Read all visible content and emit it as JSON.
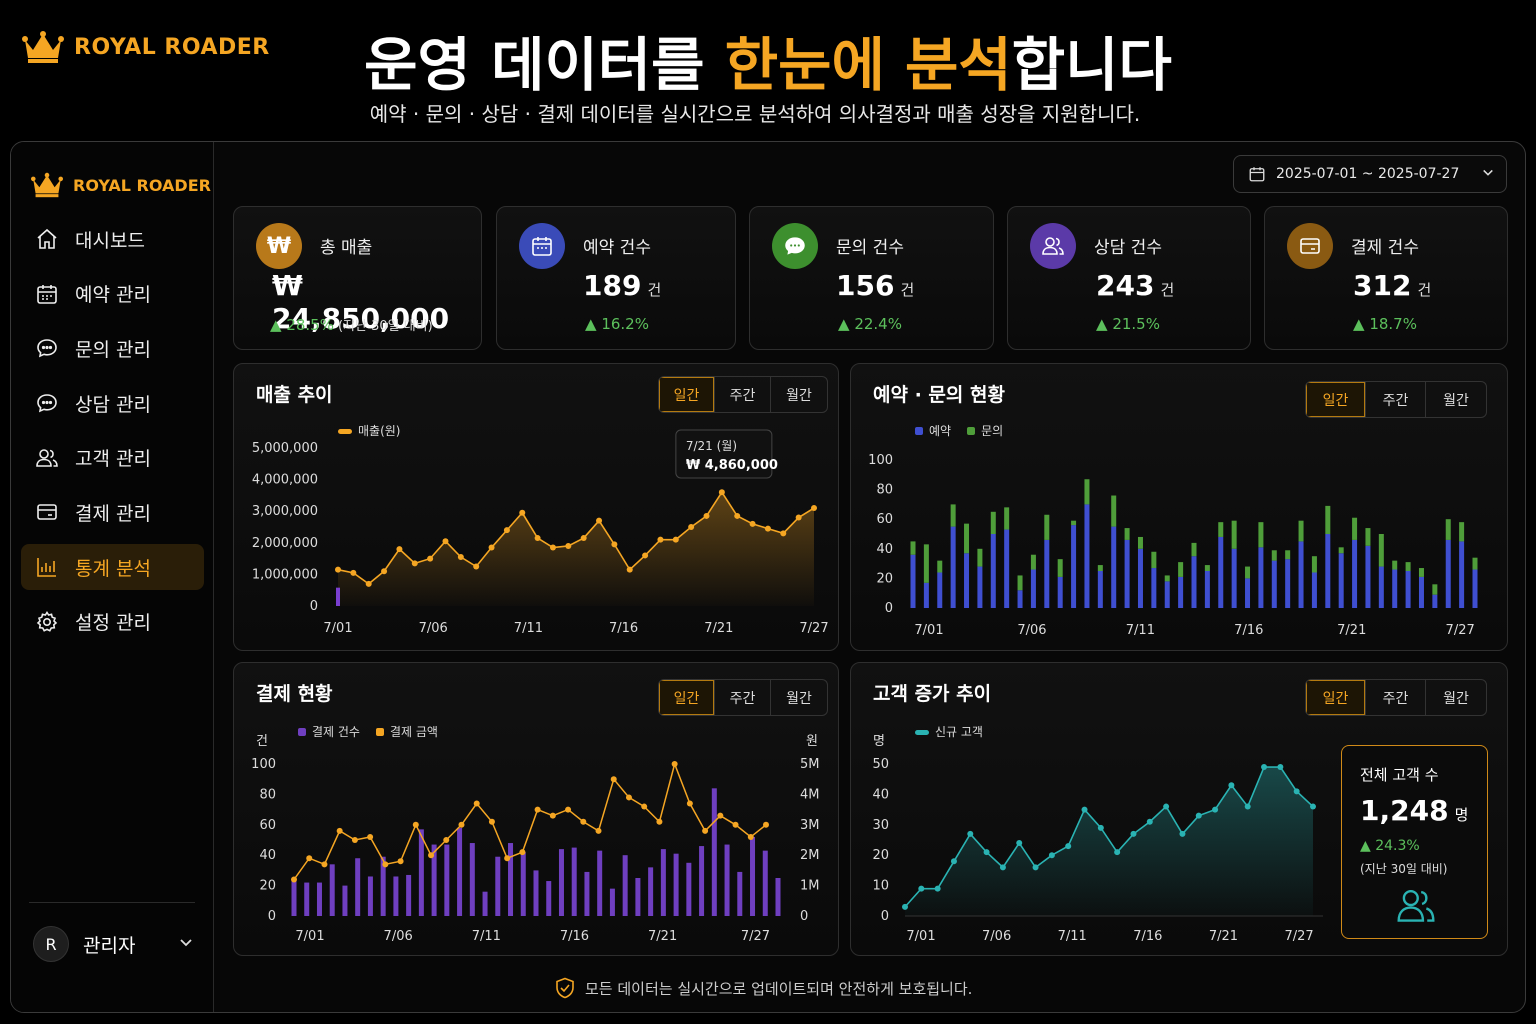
{
  "brand": {
    "name": "ROYAL ROADER"
  },
  "headline": {
    "part1": "운영 데이터를 ",
    "highlight": "한눈에 분석",
    "part2": "합니다"
  },
  "subline": "예약 · 문의 · 상담 · 결제 데이터를 실시간으로 분석하여 의사결정과 매출 성장을 지원합니다.",
  "sidebar": {
    "items": [
      {
        "label": "대시보드",
        "icon": "home-icon"
      },
      {
        "label": "예약 관리",
        "icon": "calendar-icon"
      },
      {
        "label": "문의 관리",
        "icon": "chat-icon"
      },
      {
        "label": "상담 관리",
        "icon": "chat-icon"
      },
      {
        "label": "고객 관리",
        "icon": "users-icon"
      },
      {
        "label": "결제 관리",
        "icon": "card-icon"
      },
      {
        "label": "통계 분석",
        "icon": "bar-chart-icon",
        "active": true
      },
      {
        "label": "설정 관리",
        "icon": "gear-icon"
      }
    ],
    "user": {
      "initial": "R",
      "name": "관리자"
    }
  },
  "date_range": "2025-07-01 ~ 2025-07-27",
  "kpis": [
    {
      "label": "총 매출",
      "value": "₩ 24,850,000",
      "unit": "",
      "change": "28.5%",
      "note": "(지난 30일 대비)",
      "color": "#b8791a",
      "icon": "won-icon"
    },
    {
      "label": "예약 건수",
      "value": "189",
      "unit": "건",
      "change": "16.2%",
      "color": "#3a4bb8",
      "icon": "calendar-icon"
    },
    {
      "label": "문의 건수",
      "value": "156",
      "unit": "건",
      "change": "22.4%",
      "color": "#3d8f2e",
      "icon": "chat-icon"
    },
    {
      "label": "상담 건수",
      "value": "243",
      "unit": "건",
      "change": "21.5%",
      "color": "#5b3aa8",
      "icon": "users-icon"
    },
    {
      "label": "결제 건수",
      "value": "312",
      "unit": "건",
      "change": "18.7%",
      "color": "#8a5a12",
      "icon": "card-icon"
    }
  ],
  "period_tabs": [
    "일간",
    "주간",
    "월간"
  ],
  "panels": {
    "revenue": {
      "title": "매출 추이",
      "legend": "매출(원)",
      "tooltip_date": "7/21 (월)",
      "tooltip_value": "₩ 4,860,000"
    },
    "booking": {
      "title": "예약 · 문의 현황",
      "legend1": "예약",
      "legend2": "문의"
    },
    "payment": {
      "title": "결제 현황",
      "legend1": "결제 건수",
      "legend2": "결제 금액",
      "yleft": "건",
      "yright": "원"
    },
    "customer": {
      "title": "고객 증가 추이",
      "legend": "신규 고객",
      "yunit": "명",
      "total_label": "전체 고객 수",
      "total_value": "1,248",
      "total_unit": "명",
      "total_change": "24.3%",
      "total_note": "(지난 30일 대비)"
    }
  },
  "footer": "모든 데이터는 실시간으로 업데이트되며 안전하게 보호됩니다.",
  "colors": {
    "accent": "#f5a623",
    "blue": "#3f4fd1",
    "green": "#4f9e3a",
    "purple": "#6f3fc0",
    "teal": "#2ab3b3",
    "up": "#5cc05c"
  },
  "chart_data": [
    {
      "type": "line",
      "title": "매출 추이",
      "series": [
        {
          "name": "매출(원)",
          "values": [
            1150000,
            1050000,
            700000,
            1100000,
            1800000,
            1350000,
            1500000,
            2050000,
            1550000,
            1250000,
            1850000,
            2400000,
            2950000,
            2150000,
            1850000,
            1900000,
            2150000,
            2700000,
            1950000,
            1150000,
            1600000,
            2100000,
            2100000,
            2500000,
            2850000,
            3600000,
            2850000,
            2600000,
            2450000,
            2300000,
            2800000,
            3100000
          ]
        }
      ],
      "x_ticks": [
        "7/01",
        "7/06",
        "7/11",
        "7/16",
        "7/21",
        "7/27"
      ],
      "ylim": [
        0,
        5000000
      ],
      "y_ticks": [
        "0",
        "1,000,000",
        "2,000,000",
        "3,000,000",
        "4,000,000",
        "5,000,000"
      ]
    },
    {
      "type": "bar",
      "title": "예약 · 문의 현황",
      "series": [
        {
          "name": "예약",
          "values": [
            36,
            17,
            24,
            55,
            37,
            28,
            50,
            53,
            12,
            26,
            46,
            21,
            56,
            70,
            25,
            55,
            46,
            40,
            27,
            18,
            21,
            35,
            25,
            48,
            40,
            20,
            41,
            32,
            33,
            45,
            24,
            50,
            37,
            46,
            42,
            28,
            26,
            25,
            21,
            9,
            46,
            45,
            26
          ]
        },
        {
          "name": "문의",
          "values": [
            9,
            26,
            8,
            15,
            20,
            12,
            15,
            15,
            10,
            10,
            17,
            12,
            3,
            17,
            4,
            21,
            8,
            8,
            11,
            4,
            10,
            9,
            4,
            10,
            19,
            8,
            17,
            7,
            6,
            14,
            11,
            19,
            4,
            15,
            12,
            22,
            6,
            6,
            6,
            7,
            14,
            13,
            8
          ]
        }
      ],
      "x_ticks": [
        "7/01",
        "7/06",
        "7/11",
        "7/16",
        "7/21",
        "7/27"
      ],
      "ylim": [
        0,
        100
      ]
    },
    {
      "type": "bar",
      "title": "결제 현황",
      "series": [
        {
          "name": "결제 건수",
          "values": [
            24,
            22,
            22,
            34,
            20,
            38,
            26,
            39,
            26,
            27,
            57,
            47,
            47,
            58,
            48,
            16,
            39,
            48,
            42,
            30,
            23,
            44,
            45,
            29,
            43,
            18,
            40,
            25,
            32,
            44,
            41,
            35,
            46,
            84,
            47,
            29,
            52,
            43,
            25
          ]
        },
        {
          "name": "결제 금액",
          "values": [
            1.2,
            1.9,
            1.7,
            2.8,
            2.5,
            2.6,
            1.7,
            1.8,
            3.0,
            2.0,
            2.5,
            3.0,
            3.7,
            3.1,
            1.9,
            2.1,
            3.5,
            3.3,
            3.5,
            3.1,
            2.8,
            4.5,
            3.9,
            3.6,
            3.1,
            5.0,
            3.7,
            2.8,
            3.3,
            3.0,
            2.6,
            3.0
          ]
        }
      ],
      "x_ticks": [
        "7/01",
        "7/06",
        "7/11",
        "7/16",
        "7/21",
        "7/27"
      ],
      "ylim_left": [
        0,
        100
      ],
      "ylim_right": [
        0,
        5
      ],
      "y_right_ticks": [
        "0",
        "1M",
        "2M",
        "3M",
        "4M",
        "5M"
      ]
    },
    {
      "type": "area",
      "title": "고객 증가 추이",
      "series": [
        {
          "name": "신규 고객",
          "values": [
            3,
            9,
            9,
            18,
            27,
            21,
            16,
            24,
            16,
            20,
            23,
            35,
            29,
            21,
            27,
            31,
            36,
            27,
            33,
            35,
            43,
            36,
            49,
            49,
            41,
            36
          ]
        }
      ],
      "x_ticks": [
        "7/01",
        "7/06",
        "7/11",
        "7/16",
        "7/21",
        "7/27"
      ],
      "ylim": [
        0,
        50
      ]
    }
  ]
}
